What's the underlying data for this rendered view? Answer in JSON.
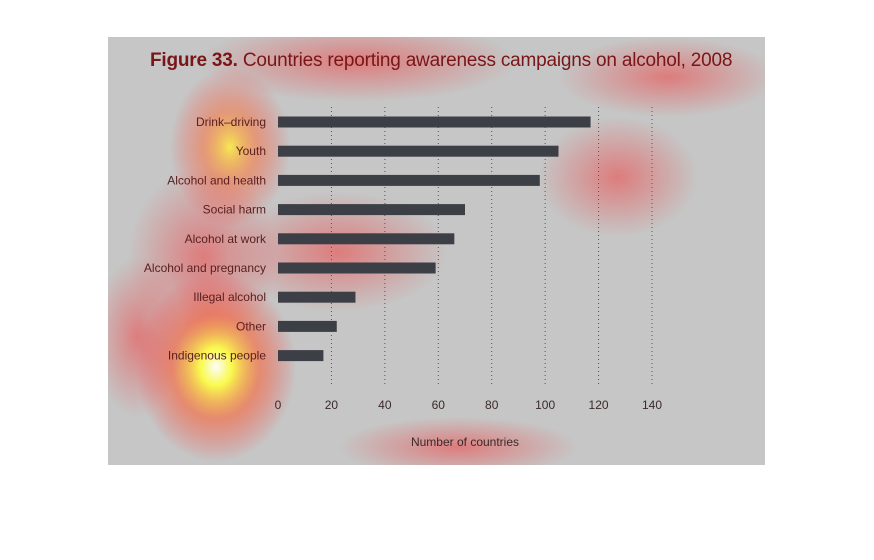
{
  "figure": {
    "label": "Figure 33.",
    "caption": " Countries reporting awareness campaigns on alcohol, 2008"
  },
  "chart_data": {
    "type": "bar",
    "orientation": "horizontal",
    "title": "Figure 33. Countries reporting awareness campaigns on alcohol, 2008",
    "categories": [
      "Drink–driving",
      "Youth",
      "Alcohol and health",
      "Social harm",
      "Alcohol at work",
      "Alcohol and pregnancy",
      "Illegal alcohol",
      "Other",
      "Indigenous people"
    ],
    "values": [
      117,
      105,
      98,
      70,
      66,
      59,
      29,
      22,
      17
    ],
    "xlabel": "Number of countries",
    "ylabel": "",
    "xlim": [
      0,
      140
    ],
    "xticks": [
      0,
      20,
      40,
      60,
      80,
      100,
      120,
      140
    ],
    "grid": "vertical dotted",
    "bar_color": "#3d3f46",
    "background": "#c6c6c6",
    "overlay": "attention heatmap (red/yellow)"
  }
}
